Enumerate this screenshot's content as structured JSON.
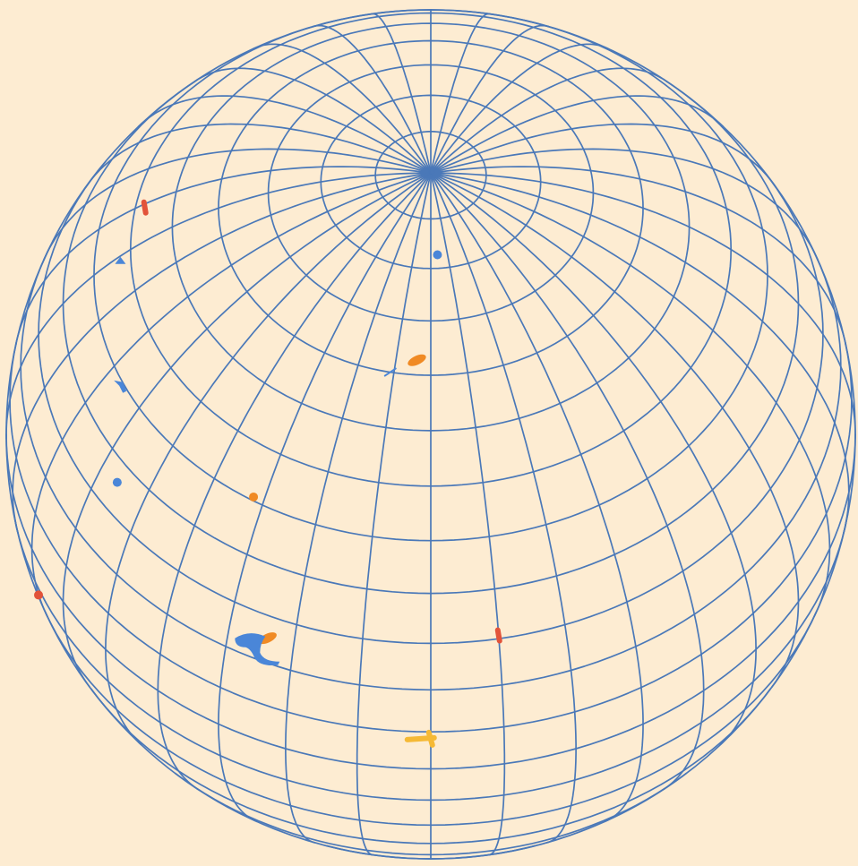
{
  "scene": {
    "background": "#fdecd2",
    "grid_color": "#4a78b8",
    "projection": "orthographic",
    "view_center": {
      "lat_deg": 52,
      "lon_deg": 0
    },
    "pole_visible": "north",
    "graticule": {
      "meridian_count": 36,
      "meridian_step_deg": 10,
      "parallel_step_deg": 7.5
    }
  },
  "markers": [
    {
      "name": "marker-red-top-left",
      "color": "#e2533a",
      "shape": "dash",
      "lat_deg": 47,
      "lon_deg": -99
    },
    {
      "name": "marker-blue-top-left",
      "color": "#4a86d8",
      "shape": "triangle",
      "lat_deg": 43,
      "lon_deg": -89
    },
    {
      "name": "marker-blue-left-upper",
      "color": "#4a86d8",
      "shape": "flag",
      "lat_deg": 37,
      "lon_deg": -66
    },
    {
      "name": "marker-blue-left-middle",
      "color": "#4a86d8",
      "shape": "dot",
      "lat_deg": 27,
      "lon_deg": -56
    },
    {
      "name": "marker-blue-near-pole",
      "color": "#4a86d8",
      "shape": "dot",
      "lat_deg": 77,
      "lon_deg": 4
    },
    {
      "name": "marker-orange-upper-center",
      "color": "#f08a24",
      "shape": "blob",
      "lat_deg": 62,
      "lon_deg": -4
    },
    {
      "name": "marker-blue-tick-upper-center",
      "color": "#4a86d8",
      "shape": "tick",
      "lat_deg": 60,
      "lon_deg": -11
    },
    {
      "name": "marker-orange-center-left",
      "color": "#f08a24",
      "shape": "dot",
      "lat_deg": 38,
      "lon_deg": -32
    },
    {
      "name": "marker-orange-lower-left",
      "color": "#f08a24",
      "shape": "blob",
      "lat_deg": 19,
      "lon_deg": -24
    },
    {
      "name": "marker-blue-lower-left",
      "color": "#4a86d8",
      "shape": "bigflag",
      "lat_deg": 17,
      "lon_deg": -26
    },
    {
      "name": "marker-red-lower-right",
      "color": "#e2533a",
      "shape": "dash",
      "lat_deg": 23,
      "lon_deg": 10
    },
    {
      "name": "marker-yellow-bottom-center",
      "color": "#f5b935",
      "shape": "hook",
      "lat_deg": 6,
      "lon_deg": -1
    },
    {
      "name": "marker-red-bottom-left",
      "color": "#e2533a",
      "shape": "dot",
      "lat_deg": -16,
      "lon_deg": -74
    }
  ]
}
